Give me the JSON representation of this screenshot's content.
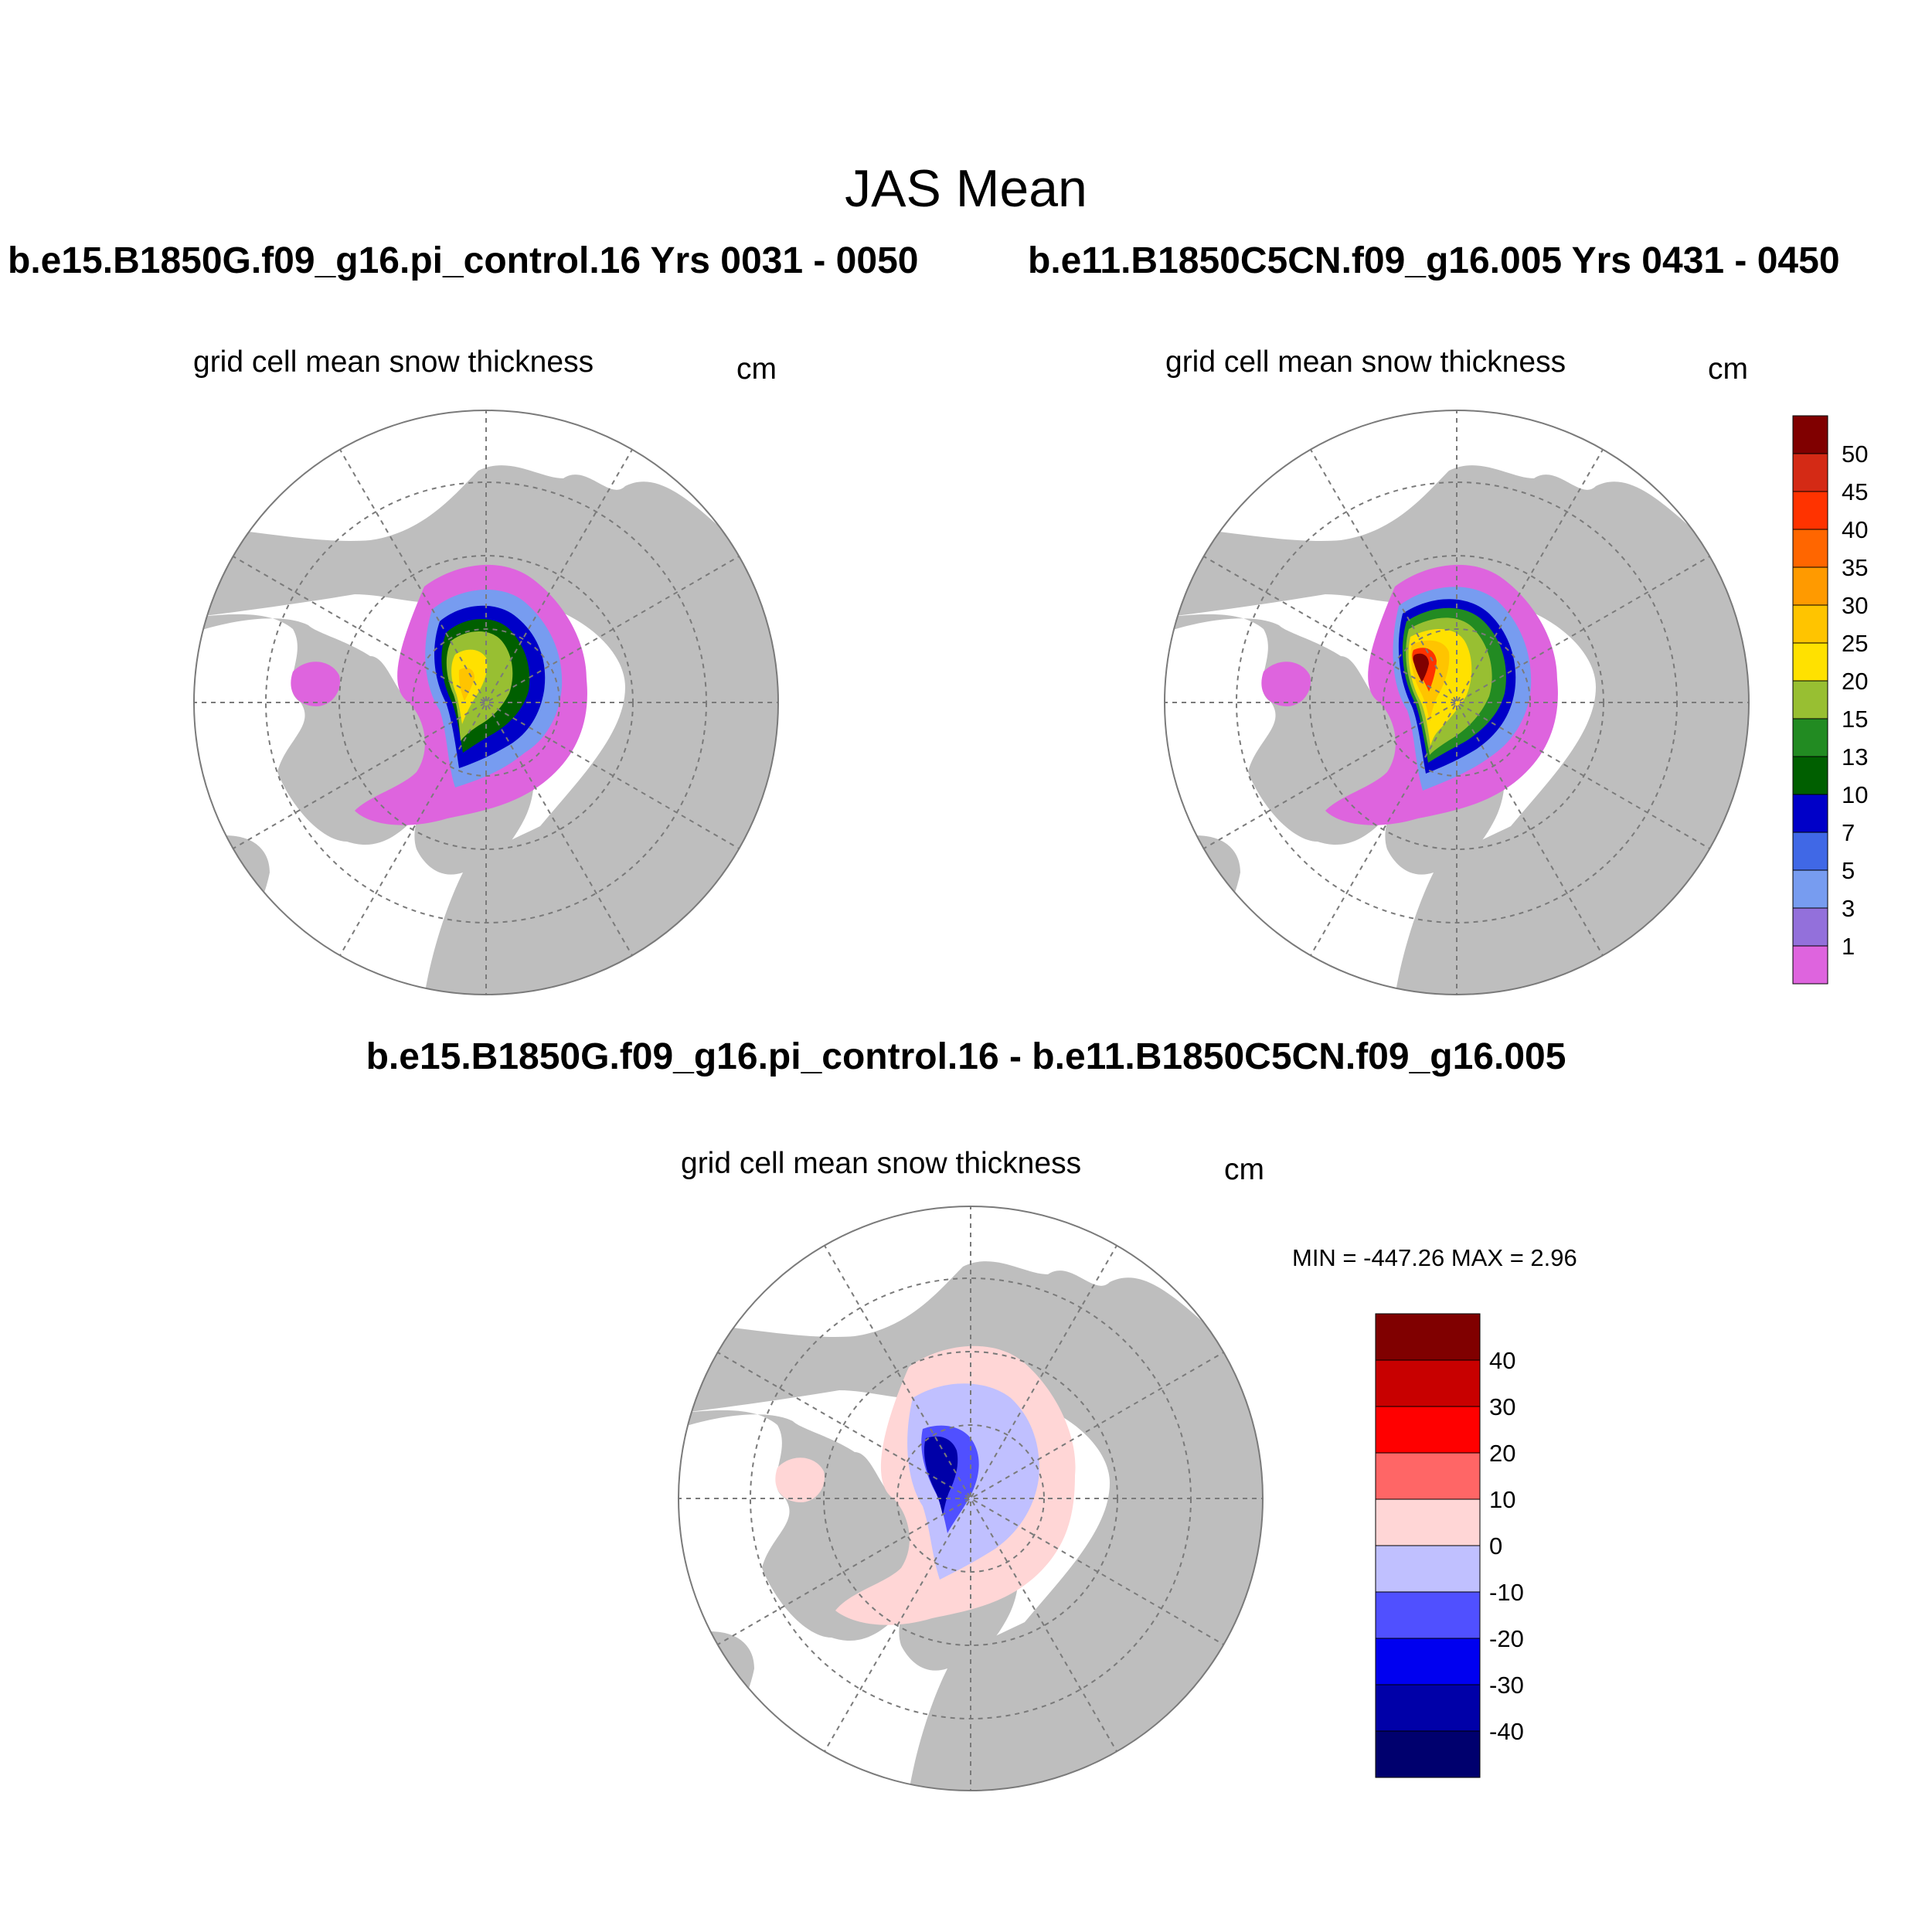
{
  "title": "JAS Mean",
  "panels": {
    "left": {
      "run_title": "b.e15.B1850G.f09_g16.pi_control.16  Yrs 0031 - 0050",
      "field": "grid cell mean snow thickness",
      "units": "cm"
    },
    "right": {
      "run_title": "b.e11.B1850C5CN.f09_g16.005  Yrs 0431 - 0450",
      "field": "grid cell mean snow thickness",
      "units": "cm"
    },
    "diff": {
      "title": "b.e15.B1850G.f09_g16.pi_control.16 - b.e11.B1850C5CN.f09_g16.005",
      "field": "grid cell mean snow thickness",
      "units": "cm",
      "minmax": "MIN = -447.26 MAX =   2.96"
    }
  },
  "colors": {
    "land": "#bebebe",
    "ocean": "#ffffff",
    "grid": "#7a7a7a"
  },
  "chart_data": [
    {
      "type": "heatmap",
      "projection": "north-polar-stereographic",
      "title": "b.e15.B1850G.f09_g16.pi_control.16  Yrs 0031 - 0050",
      "variable": "grid cell mean snow thickness",
      "units": "cm",
      "peak_value_cm": 25
    },
    {
      "type": "heatmap",
      "projection": "north-polar-stereographic",
      "title": "b.e11.B1850C5CN.f09_g16.005  Yrs 0431 - 0450",
      "variable": "grid cell mean snow thickness",
      "units": "cm",
      "peak_value_cm": 50
    },
    {
      "type": "heatmap",
      "projection": "north-polar-stereographic",
      "title": "b.e15.B1850G.f09_g16.pi_control.16 - b.e11.B1850C5CN.f09_g16.005",
      "variable": "grid cell mean snow thickness",
      "units": "cm",
      "min": -447.26,
      "max": 2.96
    }
  ],
  "colorbars": {
    "snow": {
      "labels": [
        "1",
        "3",
        "5",
        "7",
        "10",
        "13",
        "15",
        "20",
        "25",
        "30",
        "35",
        "40",
        "45",
        "50"
      ],
      "colors": [
        "#de64de",
        "#9370db",
        "#779cf0",
        "#4068e6",
        "#0000c8",
        "#005f00",
        "#228b22",
        "#98bf32",
        "#ffe100",
        "#ffc400",
        "#ff9a00",
        "#ff6600",
        "#ff3300",
        "#d42a15",
        "#800000"
      ]
    },
    "diff": {
      "labels": [
        "-40",
        "-30",
        "-20",
        "-10",
        "0",
        "10",
        "20",
        "30",
        "40"
      ],
      "colors": [
        "#00006e",
        "#0000a8",
        "#0000f0",
        "#5050ff",
        "#c0c0ff",
        "#ffd6d6",
        "#ff6666",
        "#ff0000",
        "#c80000",
        "#800000"
      ]
    }
  }
}
